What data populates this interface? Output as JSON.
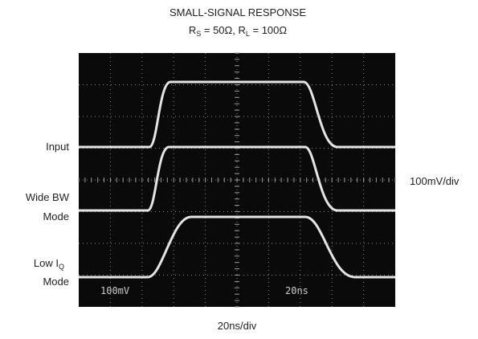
{
  "title": "SMALL-SIGNAL RESPONSE",
  "subtitle": [
    "R",
    "S",
    " = 50Ω, R",
    "L",
    " = 100Ω"
  ],
  "trace_labels": {
    "input": "Input",
    "wide_bw": [
      "Wide BW",
      "Mode"
    ],
    "low_iq": [
      "Low I",
      "Q",
      "Mode"
    ]
  },
  "vertical_scale": "100mV/div",
  "horizontal_scale": "20ns/div",
  "screen": {
    "volts": "100mV",
    "time": "20ns"
  }
}
